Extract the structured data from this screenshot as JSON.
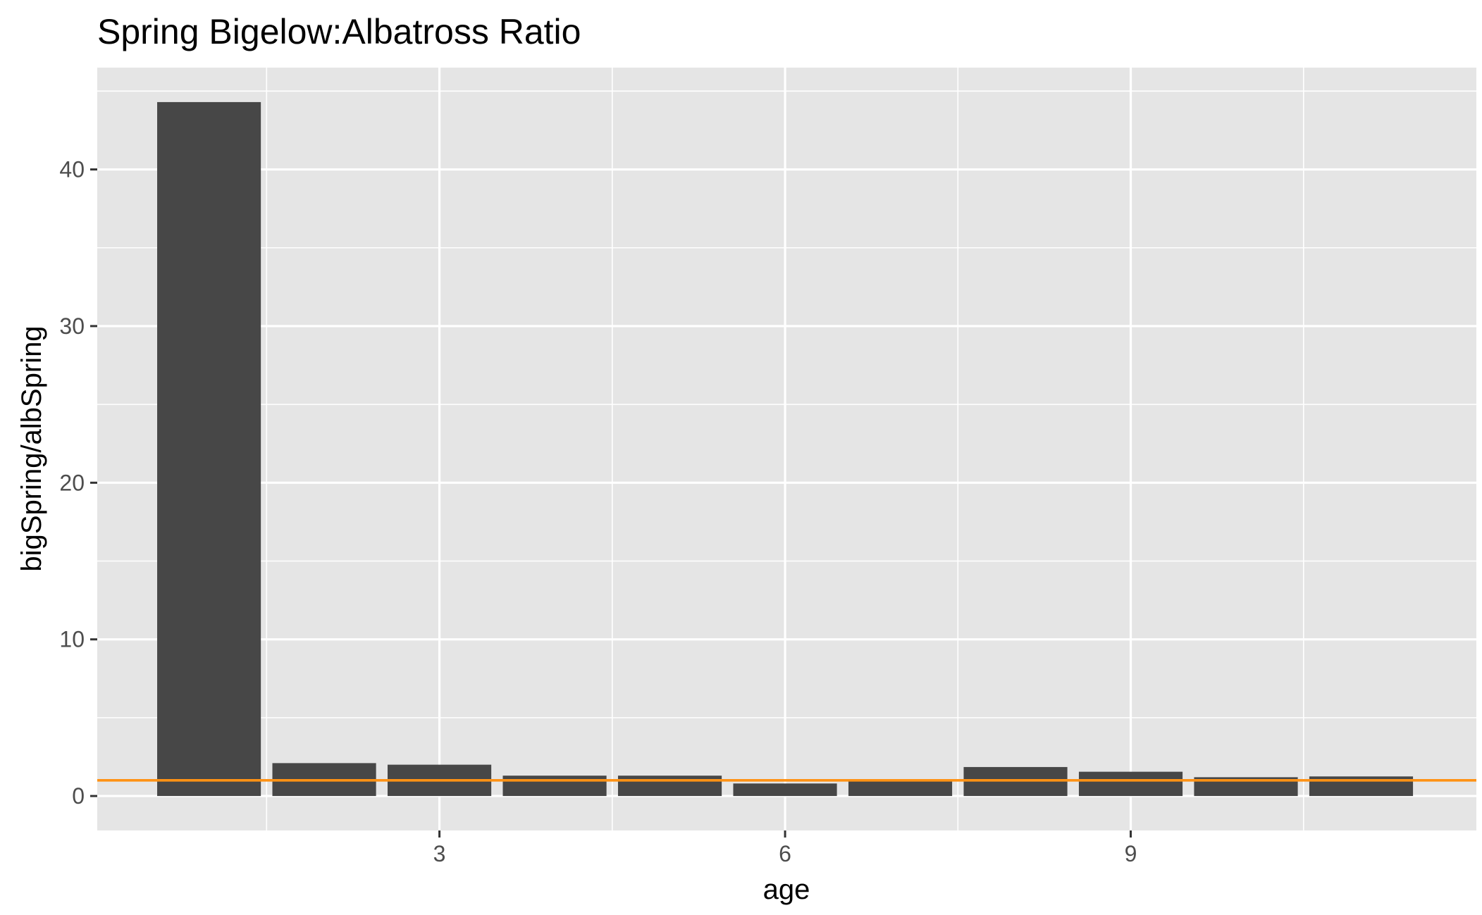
{
  "chart_data": {
    "type": "bar",
    "title": "Spring Bigelow:Albatross Ratio",
    "xlabel": "age",
    "ylabel": "bigSpring/albSpring",
    "x": [
      1,
      2,
      3,
      4,
      5,
      6,
      7,
      8,
      9,
      10,
      11
    ],
    "values": [
      44.3,
      2.1,
      2.0,
      1.3,
      1.3,
      0.8,
      1.0,
      1.85,
      1.55,
      1.2,
      1.25
    ],
    "xlim": [
      0.03,
      12.0
    ],
    "ylim": [
      -2.2,
      46.5
    ],
    "x_ticks": [
      3,
      6,
      9
    ],
    "y_ticks": [
      0,
      10,
      20,
      30,
      40
    ],
    "reference_line": {
      "y": 1,
      "color": "#ff9214"
    },
    "bar_color": "#474747",
    "panel_background": "#e5e5e5",
    "grid": true
  }
}
